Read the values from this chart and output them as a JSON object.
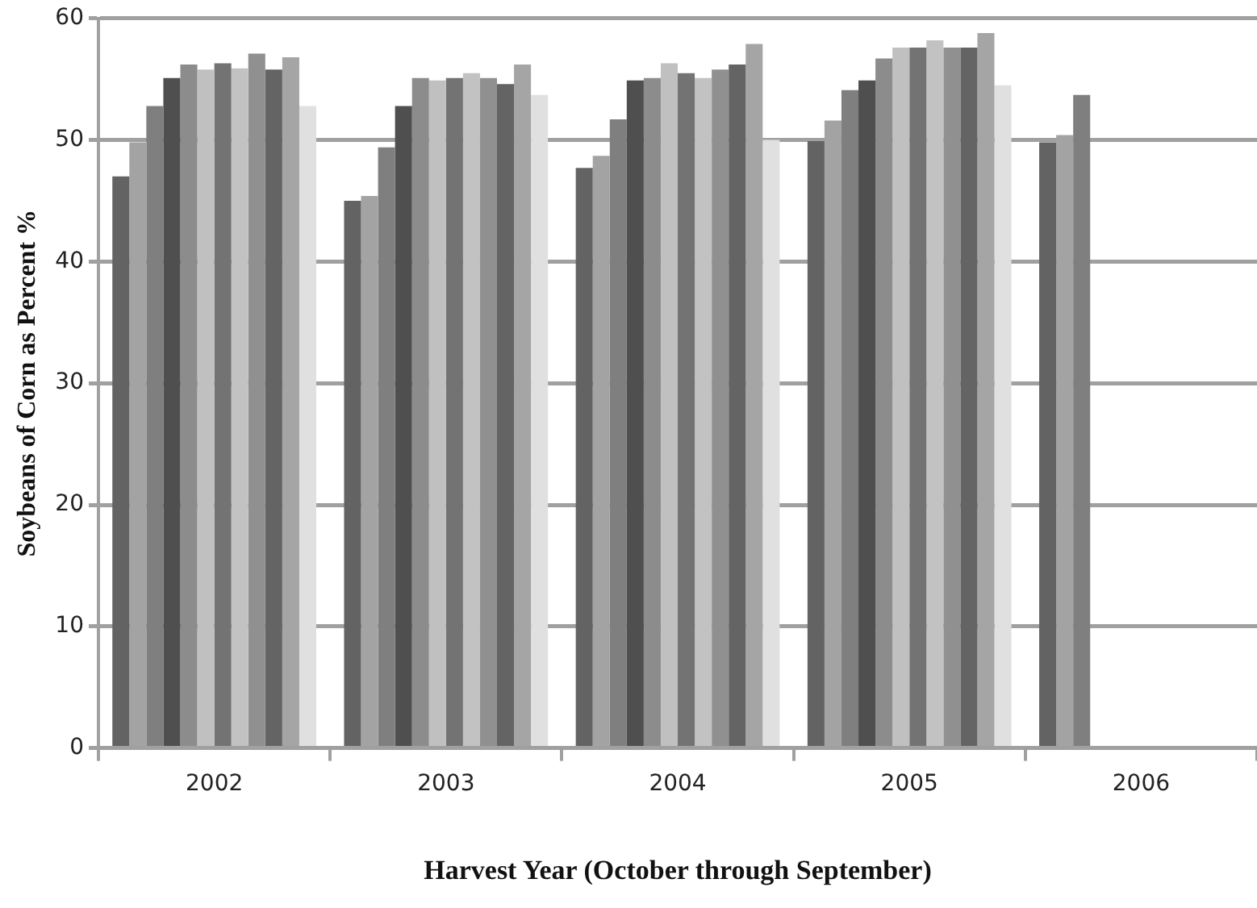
{
  "chart_data": {
    "type": "bar",
    "xlabel": "Harvest Year (October through September)",
    "ylabel": "Soybeans of Corn as Percent %",
    "categories": [
      "2002",
      "2003",
      "2004",
      "2005",
      "2006"
    ],
    "series": [
      {
        "color": "#636363",
        "values": [
          47.0,
          45.0,
          47.7,
          49.9,
          49.8
        ]
      },
      {
        "color": "#a3a3a3",
        "values": [
          49.8,
          45.4,
          48.7,
          51.6,
          50.4
        ]
      },
      {
        "color": "#7f7f7f",
        "values": [
          52.8,
          49.4,
          51.7,
          54.1,
          53.7
        ]
      },
      {
        "color": "#4f4f4f",
        "values": [
          55.1,
          52.8,
          54.9,
          54.9,
          null
        ]
      },
      {
        "color": "#8c8c8c",
        "values": [
          56.2,
          55.1,
          55.1,
          56.7,
          null
        ]
      },
      {
        "color": "#c0c0c0",
        "values": [
          55.8,
          54.9,
          56.3,
          57.6,
          null
        ]
      },
      {
        "color": "#737373",
        "values": [
          56.3,
          55.1,
          55.5,
          57.6,
          null
        ]
      },
      {
        "color": "#c2c2c2",
        "values": [
          55.9,
          55.5,
          55.1,
          58.2,
          null
        ]
      },
      {
        "color": "#909090",
        "values": [
          57.1,
          55.1,
          55.8,
          57.6,
          null
        ]
      },
      {
        "color": "#646464",
        "values": [
          55.8,
          54.6,
          56.2,
          57.6,
          null
        ]
      },
      {
        "color": "#a5a5a5",
        "values": [
          56.8,
          56.2,
          57.9,
          58.8,
          null
        ]
      },
      {
        "color": "#e0e0e0",
        "values": [
          52.8,
          53.7,
          50.0,
          54.5,
          null
        ]
      }
    ],
    "ylim": [
      0,
      60
    ],
    "yticks": [
      0,
      10,
      20,
      30,
      40,
      50,
      60
    ],
    "grid": "y",
    "legend": false
  }
}
